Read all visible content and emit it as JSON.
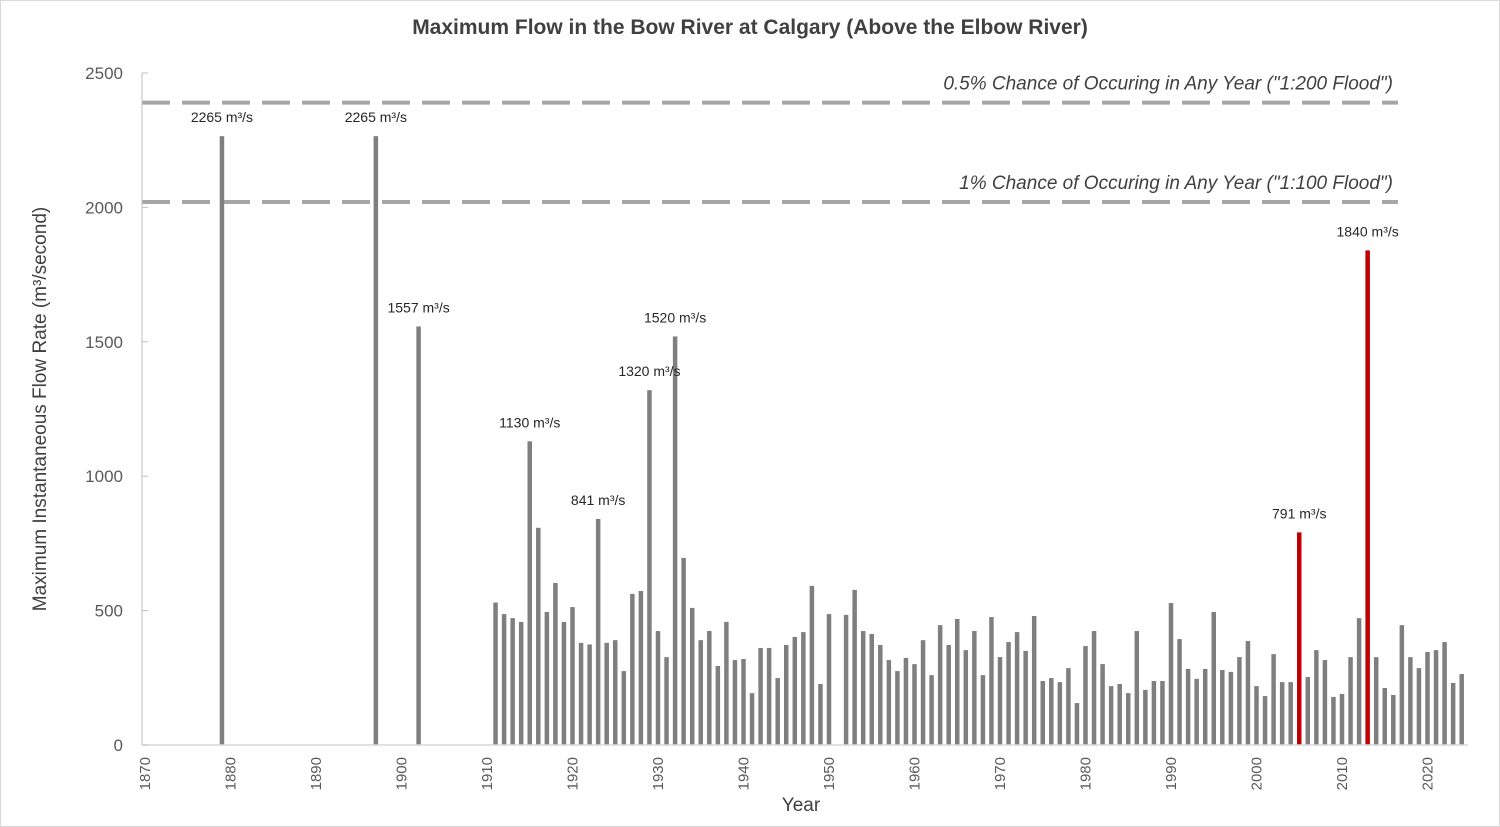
{
  "chart_data": {
    "type": "bar",
    "title": "Maximum Flow in the Bow River at Calgary (Above the Elbow River)",
    "xlabel": "Year",
    "ylabel": "Maximum Instantaneous Flow Rate (m³/second)",
    "ylim": [
      0,
      2500
    ],
    "xlim": [
      1870,
      2025
    ],
    "yticks": [
      0,
      500,
      1000,
      1500,
      2000,
      2500
    ],
    "xticks": [
      1870,
      1880,
      1890,
      1900,
      1910,
      1920,
      1930,
      1940,
      1950,
      1960,
      1970,
      1980,
      1990,
      2000,
      2010,
      2020
    ],
    "grid": false,
    "legend": "none",
    "bar_color": "#7f7f7f",
    "highlight_color": "#c00000",
    "highlight_years": [
      2005,
      2013
    ],
    "reference_lines": [
      {
        "value": 2390,
        "label": "0.5% Chance of Occuring in Any Year (\"1:200 Flood\")",
        "style": "dashed",
        "color": "#a6a6a6"
      },
      {
        "value": 2020,
        "label": "1% Chance of Occuring  in Any Year (\"1:100 Flood\")",
        "style": "dashed",
        "color": "#a6a6a6"
      }
    ],
    "annotations": [
      {
        "year": 1879,
        "text": "2265 m³/s"
      },
      {
        "year": 1897,
        "text": "2265 m³/s"
      },
      {
        "year": 1902,
        "text": "1557 m³/s"
      },
      {
        "year": 1915,
        "text": "1130 m³/s"
      },
      {
        "year": 1923,
        "text": "841 m³/s"
      },
      {
        "year": 1929,
        "text": "1320 m³/s"
      },
      {
        "year": 1932,
        "text": "1520 m³/s"
      },
      {
        "year": 2005,
        "text": "791 m³/s"
      },
      {
        "year": 2013,
        "text": "1840 m³/s"
      }
    ],
    "x": [
      1879,
      1897,
      1902,
      1911,
      1912,
      1913,
      1914,
      1915,
      1916,
      1917,
      1918,
      1919,
      1920,
      1921,
      1922,
      1923,
      1924,
      1925,
      1926,
      1927,
      1928,
      1929,
      1930,
      1931,
      1932,
      1933,
      1934,
      1935,
      1936,
      1937,
      1938,
      1939,
      1940,
      1941,
      1942,
      1943,
      1944,
      1945,
      1946,
      1947,
      1948,
      1949,
      1950,
      1952,
      1953,
      1954,
      1955,
      1956,
      1957,
      1958,
      1959,
      1960,
      1961,
      1962,
      1963,
      1964,
      1965,
      1966,
      1967,
      1968,
      1969,
      1970,
      1971,
      1972,
      1973,
      1974,
      1975,
      1976,
      1977,
      1978,
      1979,
      1980,
      1981,
      1982,
      1983,
      1984,
      1985,
      1986,
      1987,
      1988,
      1989,
      1990,
      1991,
      1992,
      1993,
      1994,
      1995,
      1996,
      1997,
      1998,
      1999,
      2000,
      2001,
      2002,
      2003,
      2004,
      2005,
      2006,
      2007,
      2008,
      2009,
      2010,
      2011,
      2012,
      2013,
      2014,
      2015,
      2016,
      2017,
      2018,
      2019,
      2020,
      2021,
      2022,
      2023,
      2024
    ],
    "values": [
      2265,
      2265,
      1557,
      530,
      487,
      472,
      458,
      1130,
      808,
      495,
      603,
      458,
      513,
      380,
      374,
      841,
      380,
      390,
      275,
      562,
      573,
      1320,
      424,
      327,
      1520,
      696,
      510,
      390,
      424,
      294,
      458,
      316,
      320,
      193,
      361,
      361,
      249,
      372,
      402,
      420,
      592,
      227,
      487,
      484,
      577,
      424,
      413,
      372,
      316,
      275,
      324,
      301,
      390,
      260,
      446,
      372,
      469,
      353,
      424,
      260,
      476,
      327,
      383,
      420,
      350,
      480,
      238,
      249,
      234,
      286,
      156,
      368,
      424,
      301,
      219,
      227,
      193,
      424,
      205,
      238,
      238,
      528,
      394,
      283,
      246,
      283,
      495,
      279,
      272,
      327,
      387,
      219,
      182,
      338,
      234,
      234,
      791,
      253,
      353,
      316,
      179,
      190,
      327,
      472,
      1840,
      327,
      212,
      186,
      446,
      327,
      286,
      346,
      353,
      383,
      231,
      264
    ]
  }
}
